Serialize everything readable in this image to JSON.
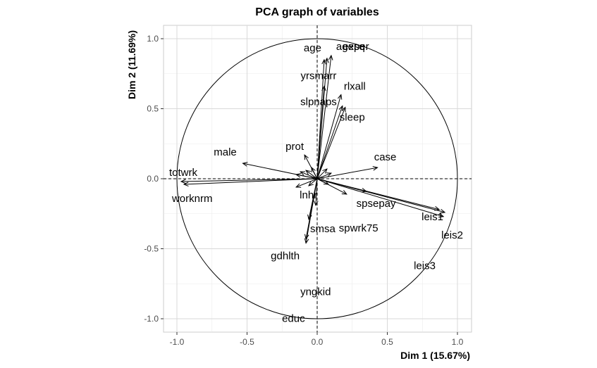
{
  "chart_data": {
    "type": "scatter",
    "title": "PCA graph of variables",
    "xlabel": "Dim 1 (15.67%)",
    "ylabel": "Dim 2 (11.69%)",
    "xlim": [
      -1.1,
      1.1
    ],
    "ylim": [
      -1.1,
      1.1
    ],
    "x_ticks": [
      "-1.0",
      "-0.5",
      "0.0",
      "0.5",
      "1.0"
    ],
    "y_ticks": [
      "-1.0",
      "-0.5",
      "0.0",
      "0.5",
      "1.0"
    ],
    "grid": true,
    "unit_circle": true,
    "arrows": [
      {
        "name": "exper",
        "x": 0.1,
        "y": 0.88
      },
      {
        "name": "age",
        "x": 0.05,
        "y": 0.85
      },
      {
        "name": "agesq",
        "x": 0.07,
        "y": 0.86
      },
      {
        "name": "yrsmarr",
        "x": 0.05,
        "y": 0.66
      },
      {
        "name": "rlxall",
        "x": 0.17,
        "y": 0.6
      },
      {
        "name": "slpnaps",
        "x": 0.18,
        "y": 0.52
      },
      {
        "name": "sleep",
        "x": 0.2,
        "y": 0.51
      },
      {
        "name": "prot",
        "x": -0.09,
        "y": 0.17
      },
      {
        "name": "case",
        "x": 0.43,
        "y": 0.08
      },
      {
        "name": "male",
        "x": -0.53,
        "y": 0.11
      },
      {
        "name": "totwrk",
        "x": -0.97,
        "y": -0.02
      },
      {
        "name": "worknrm",
        "x": -0.95,
        "y": -0.04
      },
      {
        "name": "leis1",
        "x": 0.87,
        "y": -0.22
      },
      {
        "name": "leis2",
        "x": 0.91,
        "y": -0.24
      },
      {
        "name": "leis3",
        "x": 0.9,
        "y": -0.27
      },
      {
        "name": "spsepay",
        "x": 0.35,
        "y": -0.09
      },
      {
        "name": "spwrk75",
        "x": 0.21,
        "y": -0.11
      },
      {
        "name": "lnhr",
        "x": -0.15,
        "y": -0.06
      },
      {
        "name": "smsa",
        "x": -0.01,
        "y": -0.19
      },
      {
        "name": "gdhlth",
        "x": -0.06,
        "y": -0.29
      },
      {
        "name": "yngkid",
        "x": -0.08,
        "y": -0.43
      },
      {
        "name": "educ",
        "x": -0.08,
        "y": -0.46
      },
      {
        "name": "",
        "x": -0.12,
        "y": 0.05
      },
      {
        "name": "",
        "x": -0.08,
        "y": 0.06
      },
      {
        "name": "",
        "x": 0.07,
        "y": 0.07
      },
      {
        "name": "",
        "x": -0.15,
        "y": 0.03
      },
      {
        "name": "",
        "x": -0.06,
        "y": -0.05
      },
      {
        "name": "",
        "x": 0.1,
        "y": 0.04
      },
      {
        "name": "",
        "x": -0.04,
        "y": 0.08
      },
      {
        "name": "",
        "x": 0.08,
        "y": -0.04
      }
    ]
  }
}
